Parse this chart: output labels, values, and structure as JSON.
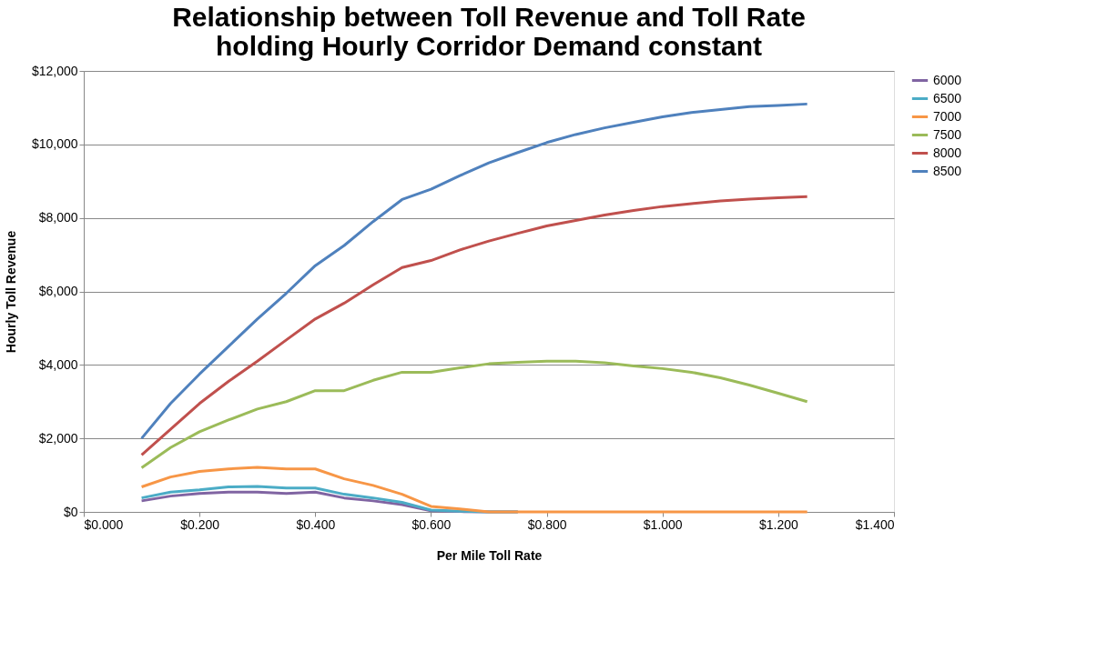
{
  "chart_data": {
    "type": "line",
    "title": "Relationship between Toll Revenue and Toll Rate\nholding Hourly Corridor Demand constant",
    "xlabel": "Per Mile Toll Rate",
    "ylabel": "Hourly Toll Revenue",
    "x": [
      0.1,
      0.15,
      0.2,
      0.25,
      0.3,
      0.35,
      0.4,
      0.45,
      0.5,
      0.55,
      0.6,
      0.65,
      0.7,
      0.75,
      0.8,
      0.85,
      0.9,
      0.95,
      1.0,
      1.05,
      1.1,
      1.15,
      1.2,
      1.25
    ],
    "series": [
      {
        "name": "6000",
        "color": "#8064a2",
        "values": [
          300,
          430,
          500,
          540,
          540,
          500,
          540,
          380,
          300,
          200,
          30,
          10,
          0,
          0,
          null,
          null,
          null,
          null,
          null,
          null,
          null,
          null,
          null,
          null
        ]
      },
      {
        "name": "6500",
        "color": "#4bacc6",
        "values": [
          380,
          540,
          600,
          680,
          690,
          650,
          650,
          480,
          380,
          260,
          50,
          20,
          0,
          0,
          null,
          null,
          null,
          null,
          null,
          null,
          null,
          null,
          null,
          null
        ]
      },
      {
        "name": "7000",
        "color": "#f79646",
        "values": [
          680,
          950,
          1100,
          1170,
          1210,
          1170,
          1170,
          900,
          720,
          480,
          150,
          80,
          0,
          0,
          0,
          0,
          0,
          0,
          0,
          0,
          0,
          0,
          0,
          0
        ]
      },
      {
        "name": "7500",
        "color": "#9bbb59",
        "values": [
          1200,
          1750,
          2180,
          2500,
          2800,
          3000,
          3300,
          3300,
          3580,
          3800,
          3800,
          3920,
          4030,
          4070,
          4100,
          4100,
          4060,
          3970,
          3900,
          3800,
          3650,
          3450,
          3230,
          3000
        ]
      },
      {
        "name": "8000",
        "color": "#c0504d",
        "values": [
          1550,
          2250,
          2950,
          3550,
          4100,
          4680,
          5250,
          5680,
          6180,
          6650,
          6840,
          7130,
          7370,
          7580,
          7780,
          7930,
          8080,
          8200,
          8310,
          8390,
          8460,
          8510,
          8550,
          8580
        ]
      },
      {
        "name": "8500",
        "color": "#4f81bd",
        "values": [
          2000,
          2950,
          3750,
          4500,
          5250,
          5950,
          6700,
          7250,
          7900,
          8500,
          8780,
          9150,
          9500,
          9780,
          10050,
          10270,
          10450,
          10600,
          10750,
          10870,
          10950,
          11030,
          11060,
          11100
        ]
      }
    ],
    "xlim": [
      0,
      1.4
    ],
    "xticks": [
      {
        "value": 0,
        "label": "$0.000"
      },
      {
        "value": 0.2,
        "label": "$0.200"
      },
      {
        "value": 0.4,
        "label": "$0.400"
      },
      {
        "value": 0.6,
        "label": "$0.600"
      },
      {
        "value": 0.8,
        "label": "$0.800"
      },
      {
        "value": 1.0,
        "label": "$1.000"
      },
      {
        "value": 1.2,
        "label": "$1.200"
      },
      {
        "value": 1.4,
        "label": "$1.400"
      }
    ],
    "ylim": [
      0,
      12000
    ],
    "yticks": [
      {
        "value": 0,
        "label": "$0"
      },
      {
        "value": 2000,
        "label": "$2,000"
      },
      {
        "value": 4000,
        "label": "$4,000"
      },
      {
        "value": 6000,
        "label": "$6,000"
      },
      {
        "value": 8000,
        "label": "$8,000"
      },
      {
        "value": 10000,
        "label": "$10,000"
      },
      {
        "value": 12000,
        "label": "$12,000"
      }
    ],
    "grid": "y",
    "legend": "right",
    "marker": "none",
    "line_style": "solid"
  }
}
